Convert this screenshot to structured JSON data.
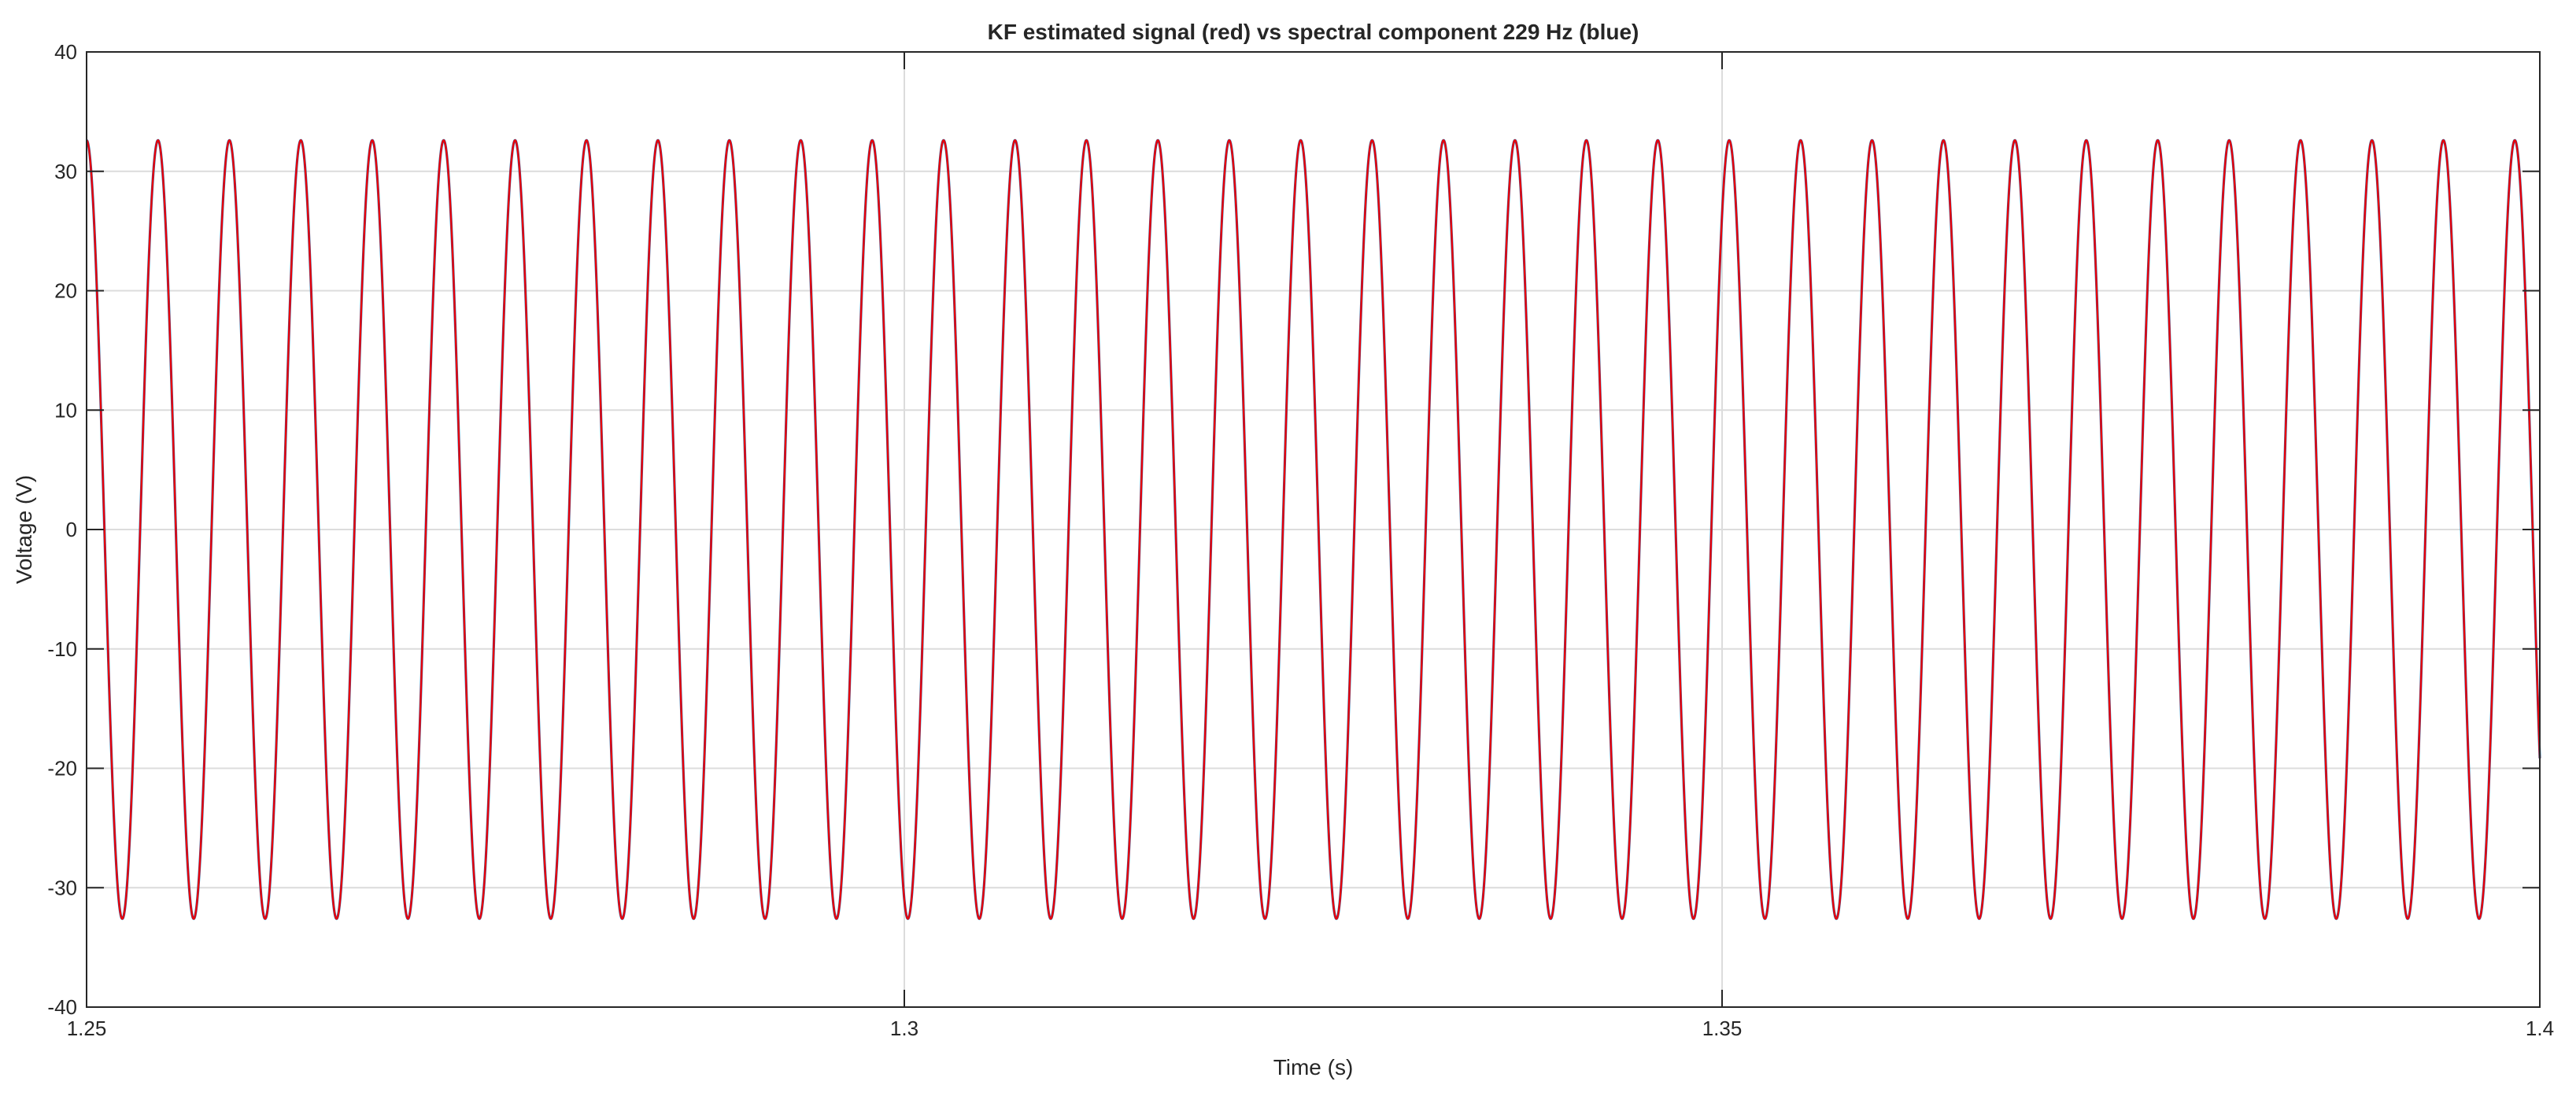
{
  "chart_data": {
    "type": "line",
    "title": "KF estimated signal (red) vs spectral component 229 Hz (blue)",
    "xlabel": "Time (s)",
    "ylabel": "Voltage (V)",
    "xlim": [
      1.25,
      1.4
    ],
    "ylim": [
      -40,
      40
    ],
    "x_ticks": [
      1.25,
      1.3,
      1.35,
      1.4
    ],
    "x_tick_labels": [
      "1.25",
      "1.3",
      "1.35",
      "1.4"
    ],
    "y_ticks": [
      -40,
      -30,
      -20,
      -10,
      0,
      10,
      20,
      30,
      40
    ],
    "y_tick_labels": [
      "-40",
      "-30",
      "-20",
      "-10",
      "0",
      "10",
      "20",
      "30",
      "40"
    ],
    "grid": true,
    "legend": "none",
    "series": [
      {
        "color": "#1f77b4",
        "signal": "sine",
        "frequency_hz": 229,
        "amplitude_v": 32.6,
        "phase_deg": 90
      },
      {
        "color": "#e8000b",
        "signal": "sine",
        "frequency_hz": 229,
        "amplitude_v": 32.6,
        "phase_deg": 90
      }
    ]
  }
}
